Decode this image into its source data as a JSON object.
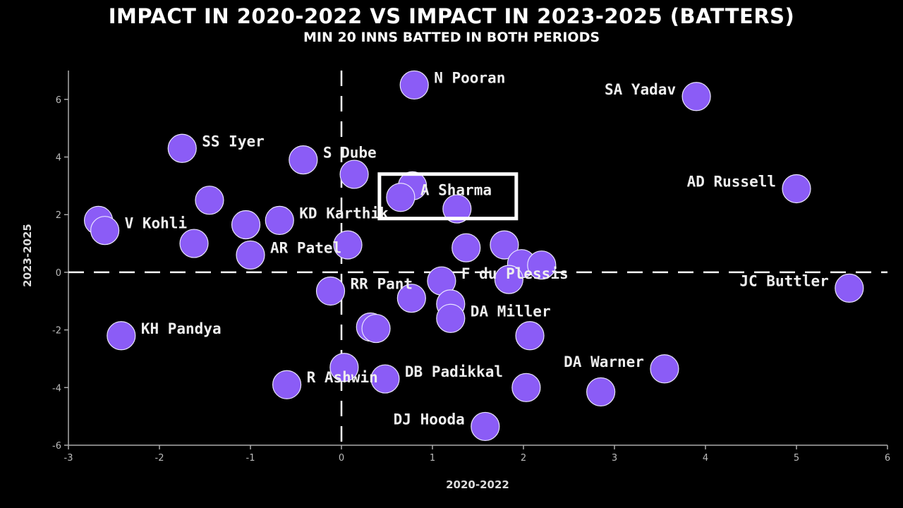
{
  "chart_data": {
    "type": "scatter",
    "title": "IMPACT IN 2020-2022 VS  IMPACT IN 2023-2025 (BATTERS)",
    "subtitle": "MIN 20 INNS BATTED IN BOTH PERIODS",
    "xlabel": "2020-2022",
    "ylabel": "2023-2025",
    "xlim": [
      -3,
      6
    ],
    "ylim": [
      -6,
      7
    ],
    "xticks": [
      -3,
      -2,
      -1,
      0,
      1,
      2,
      3,
      4,
      5,
      6
    ],
    "yticks": [
      -6,
      -4,
      -2,
      0,
      2,
      4,
      6
    ],
    "point_color": "#8b5cf6",
    "reference_lines": "dashed at x=0 and y=0",
    "highlight": "A Sharma",
    "points": [
      {
        "x": 0.8,
        "y": 6.5,
        "label": "N Pooran"
      },
      {
        "x": 3.9,
        "y": 6.1,
        "label": "SA Yadav"
      },
      {
        "x": -1.75,
        "y": 4.3,
        "label": "SS Iyer"
      },
      {
        "x": -0.42,
        "y": 3.9,
        "label": "S Dube"
      },
      {
        "x": 0.14,
        "y": 3.4,
        "label": ""
      },
      {
        "x": 0.78,
        "y": 3.0,
        "label": ""
      },
      {
        "x": 0.65,
        "y": 2.6,
        "label": "A Sharma"
      },
      {
        "x": 1.27,
        "y": 2.2,
        "label": ""
      },
      {
        "x": 5.0,
        "y": 2.9,
        "label": "AD Russell"
      },
      {
        "x": -1.45,
        "y": 2.5,
        "label": ""
      },
      {
        "x": -2.67,
        "y": 1.8,
        "label": ""
      },
      {
        "x": -2.6,
        "y": 1.45,
        "label": "V Kohli"
      },
      {
        "x": -1.05,
        "y": 1.65,
        "label": ""
      },
      {
        "x": -0.68,
        "y": 1.8,
        "label": "KD Karthik"
      },
      {
        "x": -1.62,
        "y": 1.0,
        "label": ""
      },
      {
        "x": -1.0,
        "y": 0.6,
        "label": "AR Patel"
      },
      {
        "x": 0.07,
        "y": 0.95,
        "label": ""
      },
      {
        "x": 1.37,
        "y": 0.85,
        "label": ""
      },
      {
        "x": 1.79,
        "y": 0.95,
        "label": ""
      },
      {
        "x": 1.98,
        "y": 0.3,
        "label": ""
      },
      {
        "x": 2.2,
        "y": 0.25,
        "label": ""
      },
      {
        "x": 1.1,
        "y": -0.3,
        "label": "F du Plessis"
      },
      {
        "x": 1.84,
        "y": -0.25,
        "label": ""
      },
      {
        "x": 5.58,
        "y": -0.55,
        "label": "JC Buttler"
      },
      {
        "x": -0.12,
        "y": -0.65,
        "label": "RR Pant"
      },
      {
        "x": 0.77,
        "y": -0.9,
        "label": ""
      },
      {
        "x": 1.2,
        "y": -1.1,
        "label": ""
      },
      {
        "x": 1.2,
        "y": -1.6,
        "label": "DA Miller"
      },
      {
        "x": 0.32,
        "y": -1.9,
        "label": ""
      },
      {
        "x": 0.38,
        "y": -1.95,
        "label": ""
      },
      {
        "x": -2.42,
        "y": -2.2,
        "label": "KH Pandya"
      },
      {
        "x": 2.07,
        "y": -2.2,
        "label": ""
      },
      {
        "x": 3.55,
        "y": -3.35,
        "label": "DA Warner"
      },
      {
        "x": 0.03,
        "y": -3.3,
        "label": ""
      },
      {
        "x": 0.48,
        "y": -3.7,
        "label": "DB Padikkal"
      },
      {
        "x": -0.6,
        "y": -3.9,
        "label": "R Ashwin"
      },
      {
        "x": 2.03,
        "y": -4.0,
        "label": ""
      },
      {
        "x": 2.85,
        "y": -4.15,
        "label": ""
      },
      {
        "x": 1.58,
        "y": -5.35,
        "label": "DJ Hooda"
      }
    ]
  }
}
